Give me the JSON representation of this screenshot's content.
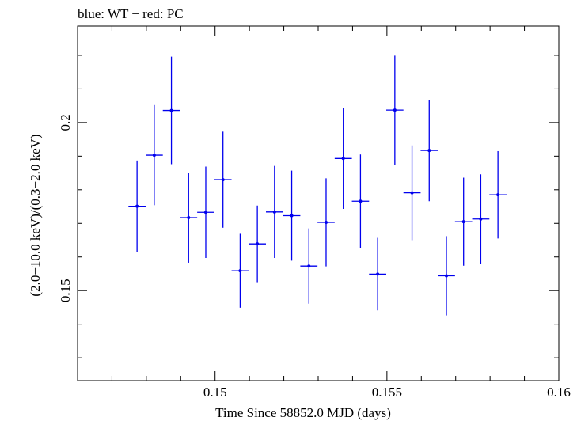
{
  "chart_data": {
    "type": "scatter",
    "title": "blue: WT − red: PC",
    "xlabel": "Time Since 58852.0 MJD (days)",
    "ylabel": "(2.0−10.0 keV)/(0.3−2.0 keV)",
    "xlim": [
      0.146,
      0.16
    ],
    "ylim": [
      0.1232,
      0.2287
    ],
    "x_ticks": [
      {
        "value": 0.15,
        "label": "0.15"
      },
      {
        "value": 0.155,
        "label": "0.155"
      },
      {
        "value": 0.16,
        "label": "0.16"
      }
    ],
    "y_ticks": [
      {
        "value": 0.15,
        "label": "0.15"
      },
      {
        "value": 0.2,
        "label": "0.2"
      }
    ],
    "grid": false,
    "series": [
      {
        "name": "WT",
        "color": "#0000ee",
        "points": [
          {
            "x": 0.14773,
            "y": 0.1751,
            "xerr": 0.00025,
            "yerr": 0.0136
          },
          {
            "x": 0.14823,
            "y": 0.1903,
            "xerr": 0.00025,
            "yerr": 0.0149
          },
          {
            "x": 0.14873,
            "y": 0.2036,
            "xerr": 0.00025,
            "yerr": 0.016
          },
          {
            "x": 0.14923,
            "y": 0.1717,
            "xerr": 0.00025,
            "yerr": 0.0134
          },
          {
            "x": 0.14973,
            "y": 0.1733,
            "xerr": 0.00025,
            "yerr": 0.0136
          },
          {
            "x": 0.15023,
            "y": 0.183,
            "xerr": 0.00025,
            "yerr": 0.0143
          },
          {
            "x": 0.15073,
            "y": 0.1559,
            "xerr": 0.00025,
            "yerr": 0.011
          },
          {
            "x": 0.15123,
            "y": 0.1639,
            "xerr": 0.00025,
            "yerr": 0.0114
          },
          {
            "x": 0.15173,
            "y": 0.1734,
            "xerr": 0.00025,
            "yerr": 0.0137
          },
          {
            "x": 0.15223,
            "y": 0.1723,
            "xerr": 0.00025,
            "yerr": 0.0134
          },
          {
            "x": 0.15273,
            "y": 0.1573,
            "xerr": 0.00025,
            "yerr": 0.0112
          },
          {
            "x": 0.15323,
            "y": 0.1703,
            "xerr": 0.00025,
            "yerr": 0.0131
          },
          {
            "x": 0.15373,
            "y": 0.1893,
            "xerr": 0.00025,
            "yerr": 0.015
          },
          {
            "x": 0.15423,
            "y": 0.1766,
            "xerr": 0.00025,
            "yerr": 0.0139
          },
          {
            "x": 0.15473,
            "y": 0.1549,
            "xerr": 0.00025,
            "yerr": 0.0108
          },
          {
            "x": 0.15523,
            "y": 0.2037,
            "xerr": 0.00025,
            "yerr": 0.0162
          },
          {
            "x": 0.15573,
            "y": 0.1791,
            "xerr": 0.00025,
            "yerr": 0.0141
          },
          {
            "x": 0.15623,
            "y": 0.1917,
            "xerr": 0.00025,
            "yerr": 0.0151
          },
          {
            "x": 0.15673,
            "y": 0.1544,
            "xerr": 0.00025,
            "yerr": 0.0118
          },
          {
            "x": 0.15723,
            "y": 0.1705,
            "xerr": 0.00025,
            "yerr": 0.0131
          },
          {
            "x": 0.15773,
            "y": 0.1713,
            "xerr": 0.00025,
            "yerr": 0.0133
          },
          {
            "x": 0.15823,
            "y": 0.1785,
            "xerr": 0.00025,
            "yerr": 0.013
          }
        ]
      }
    ]
  }
}
